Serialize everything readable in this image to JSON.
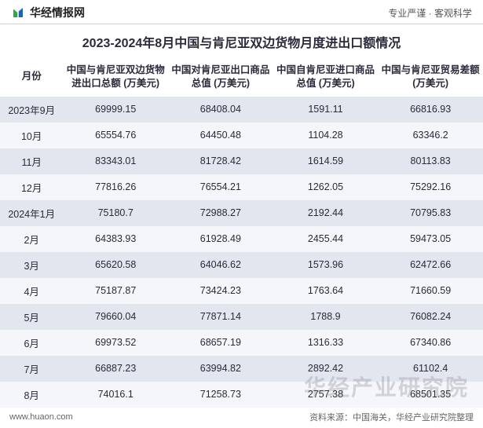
{
  "header": {
    "brand_name": "华经情报网",
    "slogan": "专业严谨 · 客观科学",
    "logo_color_left": "#2aa84a",
    "logo_color_right": "#1e63b0"
  },
  "title": "2023-2024年8月中国与肯尼亚双边货物月度进出口额情况",
  "table": {
    "columns": [
      "月份",
      "中国与肯尼亚双边货物进出口总额\n(万美元)",
      "中国对肯尼亚出口商品总值\n(万美元)",
      "中国自肯尼亚进口商品总值\n(万美元)",
      "中国与肯尼亚贸易差额\n(万美元)"
    ],
    "rows": [
      [
        "2023年9月",
        "69999.15",
        "68408.04",
        "1591.11",
        "66816.93"
      ],
      [
        "10月",
        "65554.76",
        "64450.48",
        "1104.28",
        "63346.2"
      ],
      [
        "11月",
        "83343.01",
        "81728.42",
        "1614.59",
        "80113.83"
      ],
      [
        "12月",
        "77816.26",
        "76554.21",
        "1262.05",
        "75292.16"
      ],
      [
        "2024年1月",
        "75180.7",
        "72988.27",
        "2192.44",
        "70795.83"
      ],
      [
        "2月",
        "64383.93",
        "61928.49",
        "2455.44",
        "59473.05"
      ],
      [
        "3月",
        "65620.58",
        "64046.62",
        "1573.96",
        "62472.66"
      ],
      [
        "4月",
        "75187.87",
        "73424.23",
        "1763.64",
        "71660.59"
      ],
      [
        "5月",
        "79660.04",
        "77871.14",
        "1788.9",
        "76082.24"
      ],
      [
        "6月",
        "69973.52",
        "68657.19",
        "1316.33",
        "67340.86"
      ],
      [
        "7月",
        "66887.23",
        "63994.82",
        "2892.42",
        "61102.4"
      ],
      [
        "8月",
        "74016.1",
        "71258.73",
        "2757.38",
        "68501.35"
      ]
    ],
    "header_bg": "#ffffff",
    "row_odd_bg": "#e2e6ef",
    "row_even_bg": "#f4f6fa",
    "text_color": "#2a2a3a",
    "font_size": 12.5
  },
  "footer": {
    "site": "www.huaon.com",
    "source": "资料来源：中国海关，华经产业研究院整理"
  },
  "watermark": "华经产业研究院"
}
